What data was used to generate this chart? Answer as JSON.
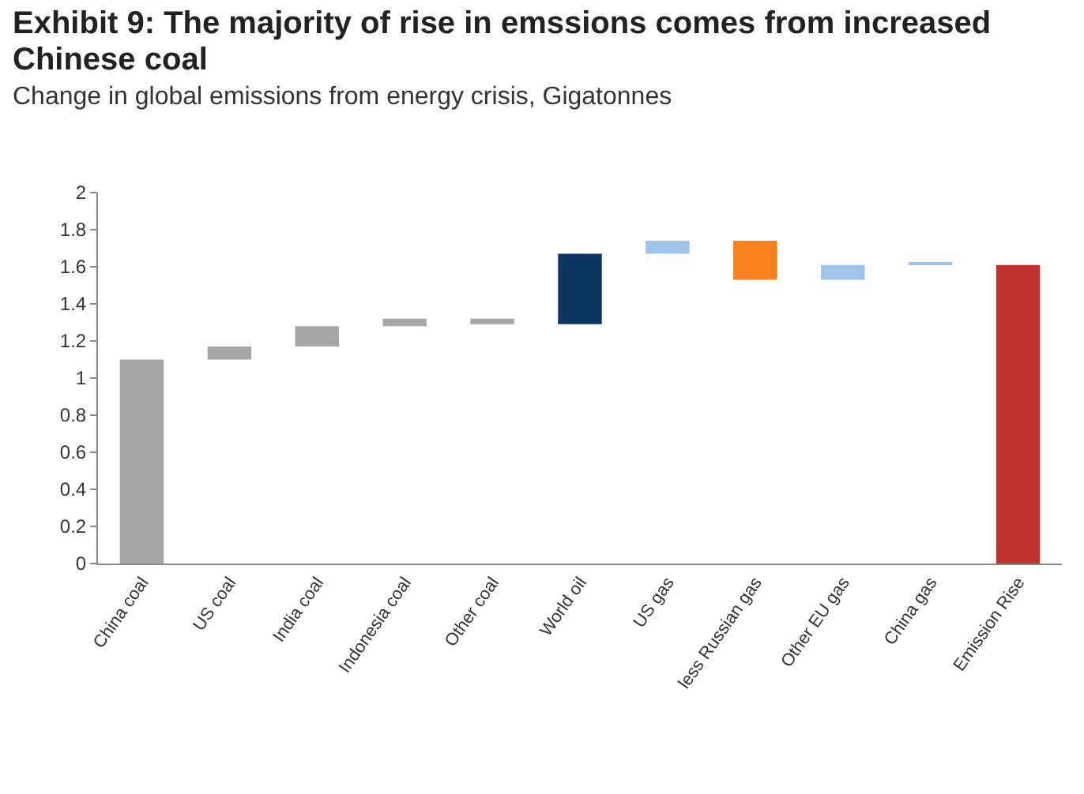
{
  "chart_data": {
    "type": "bar",
    "title": "Exhibit 9: The majority of rise in emssions comes from increased Chinese coal",
    "subtitle": "Change in global emissions from energy crisis, Gigatonnes",
    "categories": [
      "China coal",
      "US coal",
      "India coal",
      "Indonesia coal",
      "Other coal",
      "World oil",
      "US gas",
      "less Russian gas",
      "Other EU gas",
      "China gas",
      "Emission Rise"
    ],
    "values": [
      1.1,
      0.07,
      0.11,
      0.04,
      -0.03,
      0.38,
      0.07,
      -0.21,
      0.08,
      0.01,
      1.61
    ],
    "base": [
      0,
      1.1,
      1.17,
      1.28,
      1.32,
      1.29,
      1.67,
      1.74,
      1.53,
      1.61,
      0
    ],
    "colors": [
      "#a6a6a6",
      "#a6a6a6",
      "#a6a6a6",
      "#a6a6a6",
      "#a6a6a6",
      "#0d3560",
      "#9dc3e6",
      "#f5821f",
      "#9dc3e6",
      "#9dc3e6",
      "#c0312f"
    ],
    "ylim": [
      0,
      2
    ],
    "yticks": [
      0,
      0.2,
      0.4,
      0.6,
      0.8,
      1,
      1.2,
      1.4,
      1.6,
      1.8,
      2
    ],
    "grid": false,
    "legend": false
  }
}
